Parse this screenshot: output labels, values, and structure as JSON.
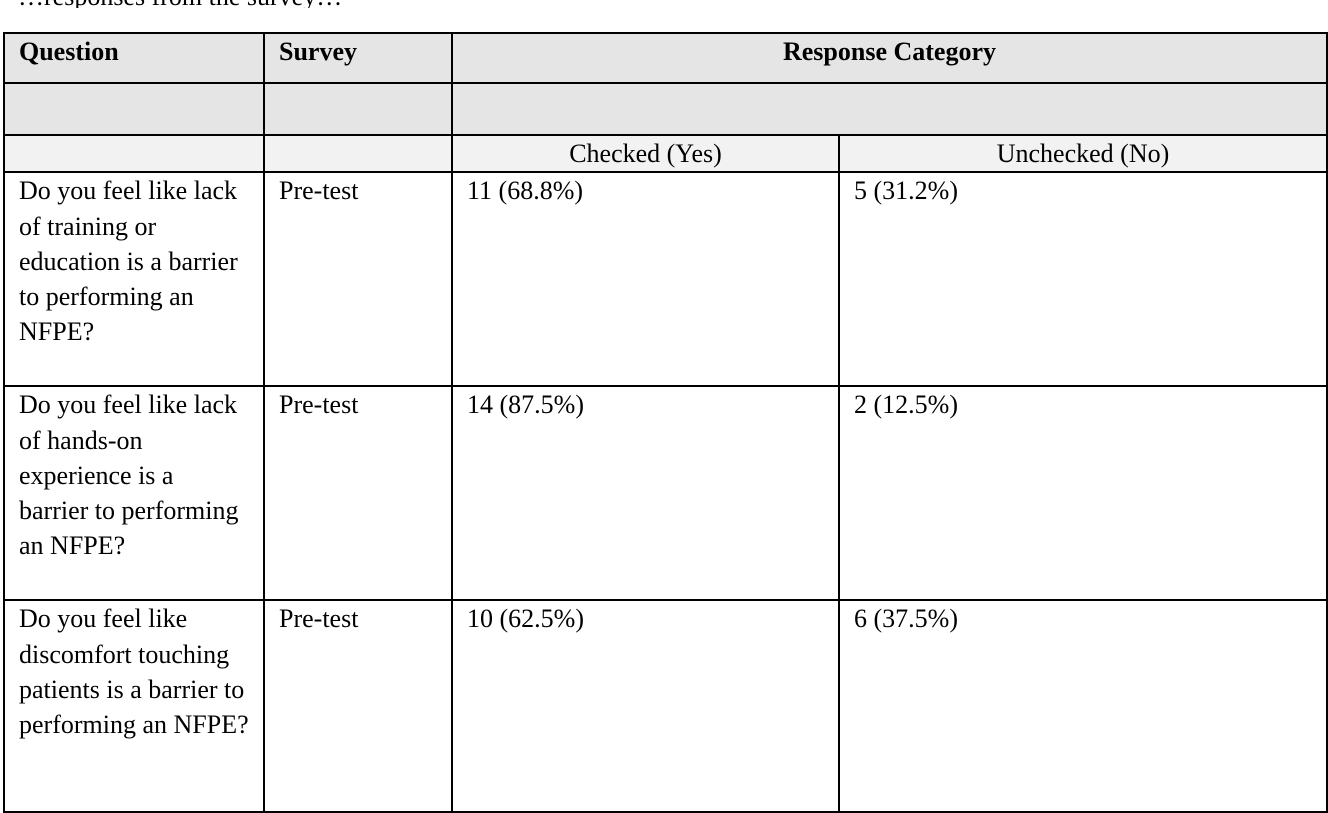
{
  "caption_fragment": "…responses from the survey…",
  "table": {
    "headers": {
      "question": "Question",
      "survey": "Survey",
      "response_category": "Response Category"
    },
    "subheaders": {
      "checked": "Checked (Yes)",
      "unchecked": "Unchecked (No)"
    },
    "rows": [
      {
        "question": "Do you feel like lack of training or education is a barrier to performing an NFPE?",
        "survey": "Pre-test",
        "checked": "11 (68.8%)",
        "unchecked": "5 (31.2%)"
      },
      {
        "question": "Do you feel like lack of hands-on experience is a barrier to performing an NFPE?",
        "survey": "Pre-test",
        "checked": "14 (87.5%)",
        "unchecked": "2 (12.5%)"
      },
      {
        "question": "Do you feel like discomfort touching patients is a barrier to performing an NFPE?",
        "survey": "Pre-test",
        "checked": "10 (62.5%)",
        "unchecked": "6 (37.5%)"
      }
    ]
  }
}
